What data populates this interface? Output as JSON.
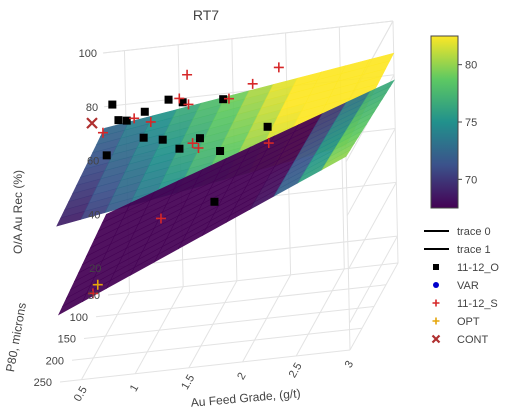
{
  "chart_data": {
    "type": "scatter3d-surface",
    "title": "RT7",
    "axes": {
      "x": {
        "label": "Au Feed Grade, (g/t)",
        "ticks": [
          0.5,
          1,
          1.5,
          2,
          2.5,
          3
        ],
        "range": [
          0.3,
          3
        ]
      },
      "y": {
        "label": "P80, microns",
        "ticks": [
          50,
          100,
          150,
          200,
          250
        ],
        "range": [
          50,
          250
        ]
      },
      "z": {
        "label": "O/A Au Rec (%)",
        "ticks": [
          20,
          40,
          60,
          80,
          100
        ],
        "range": [
          10,
          100
        ]
      }
    },
    "colorbar": {
      "ticks": [
        70,
        75,
        80
      ],
      "range": [
        67.5,
        82.5
      ],
      "colorscale": "viridis"
    },
    "surfaces": [
      {
        "name": "trace 0",
        "corners": [
          [
            0.3,
            250,
            68
          ],
          [
            3,
            250,
            86
          ],
          [
            3,
            50,
            88
          ],
          [
            0.3,
            50,
            72
          ]
        ]
      },
      {
        "name": "trace 1",
        "corners": [
          [
            0.3,
            250,
            35
          ],
          [
            3,
            250,
            82
          ],
          [
            3,
            50,
            78
          ],
          [
            0.3,
            50,
            40
          ]
        ]
      }
    ],
    "series": [
      {
        "name": "11-12_O",
        "symbol": "square",
        "color": "#000000",
        "points": [
          [
            0.4,
            60,
            82
          ],
          [
            0.5,
            80,
            79
          ],
          [
            0.6,
            90,
            80
          ],
          [
            0.7,
            60,
            78
          ],
          [
            0.8,
            110,
            76
          ],
          [
            0.9,
            50,
            80
          ],
          [
            1.0,
            120,
            76
          ],
          [
            1.1,
            80,
            83
          ],
          [
            1.2,
            140,
            75
          ],
          [
            1.3,
            100,
            72
          ],
          [
            1.5,
            90,
            84
          ],
          [
            1.6,
            150,
            74
          ],
          [
            2.0,
            130,
            78
          ],
          [
            1.7,
            220,
            66
          ],
          [
            0.5,
            130,
            74
          ]
        ]
      },
      {
        "name": "VAR",
        "symbol": "circle",
        "color": "#0000cc",
        "points": []
      },
      {
        "name": "11-12_S",
        "symbol": "cross",
        "color": "#d62728",
        "points": [
          [
            0.4,
            100,
            78
          ],
          [
            0.6,
            60,
            76
          ],
          [
            0.8,
            80,
            77
          ],
          [
            1.0,
            50,
            80
          ],
          [
            1.1,
            60,
            90
          ],
          [
            1.2,
            100,
            85
          ],
          [
            1.3,
            130,
            75
          ],
          [
            1.4,
            150,
            76
          ],
          [
            1.6,
            110,
            87
          ],
          [
            1.8,
            100,
            90
          ],
          [
            2.0,
            80,
            92
          ],
          [
            2.1,
            170,
            78
          ],
          [
            1.2,
            220,
            62
          ],
          [
            0.6,
            240,
            40
          ]
        ]
      },
      {
        "name": "OPT",
        "symbol": "cross",
        "color": "#e5a50a",
        "points": [
          [
            0.6,
            220,
            40
          ]
        ]
      },
      {
        "name": "CONT",
        "symbol": "x",
        "color": "#b03030",
        "points": [
          [
            0.3,
            100,
            82
          ]
        ]
      }
    ],
    "legend": {
      "position": "right",
      "entries": [
        {
          "name": "trace 0",
          "kind": "line"
        },
        {
          "name": "trace 1",
          "kind": "line"
        },
        {
          "name": "11-12_O",
          "kind": "square",
          "color": "#000000"
        },
        {
          "name": "VAR",
          "kind": "circle",
          "color": "#0000cc"
        },
        {
          "name": "11-12_S",
          "kind": "cross",
          "color": "#d62728"
        },
        {
          "name": "OPT",
          "kind": "cross",
          "color": "#e5a50a"
        },
        {
          "name": "CONT",
          "kind": "x",
          "color": "#b03030"
        }
      ]
    },
    "grid": true
  }
}
